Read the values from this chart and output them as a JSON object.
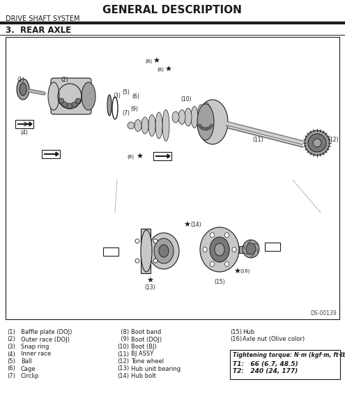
{
  "title": "GENERAL DESCRIPTION",
  "subtitle_left": "DRIVE SHAFT SYSTEM",
  "section": "3.  REAR AXLE",
  "diagram_code": "DS-00139",
  "background_color": "#ffffff",
  "legend_col1": [
    [
      "(1)",
      "Baffle plate (DOJ)"
    ],
    [
      "(2)",
      "Outer race (DOJ)"
    ],
    [
      "(3)",
      "Snap ring"
    ],
    [
      "(4)",
      "Inner race"
    ],
    [
      "(5)",
      "Ball"
    ],
    [
      "(6)",
      "Cage"
    ],
    [
      "(7)",
      "Circlip"
    ]
  ],
  "legend_col2": [
    [
      "  (8)",
      "Boot band"
    ],
    [
      "  (9)",
      "Boot (DOJ)"
    ],
    [
      "(10)",
      "Boot (BJ)"
    ],
    [
      "(11)",
      "BJ ASSY"
    ],
    [
      "(12)",
      "Tone wheel"
    ],
    [
      "(13)",
      "Hub unit bearing"
    ],
    [
      "(14)",
      "Hub bolt"
    ]
  ],
  "legend_col3": [
    [
      "(15)",
      "Hub"
    ],
    [
      "(16)",
      "Axle nut (Olive color)"
    ]
  ],
  "torque_title": "Tightening torque: N·m (kgf·m, ft·lb)",
  "torque_t1": "T1:   66 (6.7, 48.5)",
  "torque_t2": "T2:   240 (24, 177)"
}
